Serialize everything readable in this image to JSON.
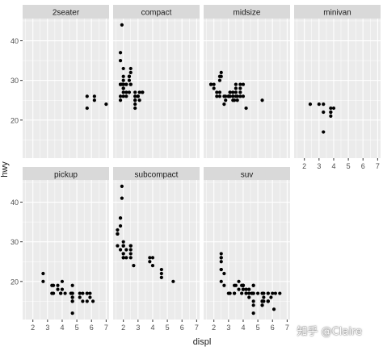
{
  "chart_data": {
    "type": "scatter",
    "xlabel": "displ",
    "ylabel": "hwy",
    "xlim": [
      1.3,
      7.2
    ],
    "ylim": [
      10.4,
      45.6
    ],
    "x_ticks": [
      2,
      3,
      4,
      5,
      6,
      7
    ],
    "y_ticks": [
      20,
      30,
      40
    ],
    "grid": true,
    "panel_background": "#ebebeb",
    "strip_background": "#d9d9d9",
    "point_color": "#000000",
    "facets": [
      {
        "name": "2seater",
        "points": [
          [
            5.7,
            26
          ],
          [
            5.7,
            23
          ],
          [
            6.2,
            26
          ],
          [
            6.2,
            25
          ],
          [
            7.0,
            24
          ]
        ]
      },
      {
        "name": "compact",
        "points": [
          [
            1.8,
            29
          ],
          [
            1.8,
            29
          ],
          [
            2.0,
            31
          ],
          [
            2.0,
            30
          ],
          [
            2.8,
            26
          ],
          [
            2.8,
            26
          ],
          [
            3.1,
            27
          ],
          [
            1.8,
            26
          ],
          [
            1.8,
            25
          ],
          [
            2.0,
            28
          ],
          [
            2.0,
            27
          ],
          [
            2.8,
            25
          ],
          [
            2.8,
            25
          ],
          [
            3.1,
            25
          ],
          [
            2.2,
            27
          ],
          [
            2.2,
            29
          ],
          [
            2.4,
            31
          ],
          [
            2.4,
            31
          ],
          [
            3.0,
            26
          ],
          [
            3.0,
            26
          ],
          [
            3.3,
            27
          ],
          [
            1.8,
            35
          ],
          [
            1.8,
            37
          ],
          [
            2.0,
            33
          ],
          [
            1.9,
            44
          ],
          [
            2.0,
            29
          ],
          [
            2.0,
            26
          ],
          [
            2.5,
            29
          ],
          [
            2.5,
            29
          ],
          [
            2.8,
            23
          ],
          [
            2.8,
            24
          ],
          [
            1.8,
            29
          ],
          [
            2.0,
            28
          ],
          [
            2.0,
            29
          ],
          [
            1.9,
            29
          ],
          [
            2.4,
            27
          ],
          [
            2.4,
            30
          ],
          [
            2.5,
            33
          ],
          [
            2.5,
            32
          ],
          [
            2.8,
            27
          ],
          [
            3.0,
            26
          ],
          [
            2.2,
            26
          ],
          [
            2.2,
            29
          ],
          [
            2.4,
            31
          ],
          [
            3.3,
            27
          ],
          [
            3.3,
            27
          ],
          [
            2.0,
            28
          ]
        ]
      },
      {
        "name": "midsize",
        "points": [
          [
            2.4,
            27
          ],
          [
            2.4,
            30
          ],
          [
            3.1,
            26
          ],
          [
            3.5,
            29
          ],
          [
            3.6,
            26
          ],
          [
            2.4,
            31
          ],
          [
            3.0,
            26
          ],
          [
            3.3,
            26
          ],
          [
            3.3,
            26
          ],
          [
            3.8,
            28
          ],
          [
            3.8,
            26
          ],
          [
            3.8,
            29
          ],
          [
            4.0,
            29
          ],
          [
            3.1,
            27
          ],
          [
            3.5,
            28
          ],
          [
            3.6,
            25
          ],
          [
            1.8,
            29
          ],
          [
            1.8,
            29
          ],
          [
            2.0,
            29
          ],
          [
            2.0,
            28
          ],
          [
            2.8,
            25
          ],
          [
            2.8,
            26
          ],
          [
            3.1,
            27
          ],
          [
            4.2,
            23
          ],
          [
            5.3,
            25
          ],
          [
            2.5,
            32
          ],
          [
            2.5,
            31
          ],
          [
            3.5,
            26
          ],
          [
            3.5,
            27
          ],
          [
            3.0,
            26
          ],
          [
            2.2,
            26
          ],
          [
            2.2,
            27
          ],
          [
            2.4,
            26
          ],
          [
            3.0,
            26
          ],
          [
            3.3,
            25
          ],
          [
            3.3,
            27
          ],
          [
            3.8,
            27
          ],
          [
            2.7,
            24
          ],
          [
            2.7,
            26
          ],
          [
            3.4,
            25
          ],
          [
            4.0,
            26
          ]
        ]
      },
      {
        "name": "minivan",
        "points": [
          [
            2.4,
            24
          ],
          [
            3.0,
            24
          ],
          [
            3.3,
            22
          ],
          [
            3.3,
            17
          ],
          [
            3.8,
            22
          ],
          [
            3.8,
            21
          ],
          [
            3.8,
            23
          ],
          [
            4.0,
            23
          ],
          [
            3.3,
            24
          ],
          [
            3.8,
            22
          ]
        ]
      },
      {
        "name": "pickup",
        "points": [
          [
            2.7,
            20
          ],
          [
            2.7,
            22
          ],
          [
            3.4,
            19
          ],
          [
            3.4,
            17
          ],
          [
            4.0,
            18
          ],
          [
            4.7,
            17
          ],
          [
            4.7,
            19
          ],
          [
            4.7,
            12
          ],
          [
            5.2,
            17
          ],
          [
            5.7,
            17
          ],
          [
            5.9,
            17
          ],
          [
            4.7,
            16
          ],
          [
            4.7,
            16
          ],
          [
            4.7,
            17
          ],
          [
            5.7,
            15
          ],
          [
            6.1,
            15
          ],
          [
            4.0,
            20
          ],
          [
            4.2,
            17
          ],
          [
            4.6,
            17
          ],
          [
            4.6,
            17
          ],
          [
            5.4,
            17
          ],
          [
            5.4,
            15
          ],
          [
            3.7,
            19
          ],
          [
            3.7,
            18
          ],
          [
            3.9,
            17
          ],
          [
            3.9,
            17
          ],
          [
            4.7,
            15
          ],
          [
            4.7,
            15
          ],
          [
            5.2,
            16
          ],
          [
            5.7,
            17
          ],
          [
            5.9,
            16
          ],
          [
            3.3,
            17
          ],
          [
            3.3,
            19
          ]
        ]
      },
      {
        "name": "subcompact",
        "points": [
          [
            3.8,
            26
          ],
          [
            3.8,
            25
          ],
          [
            4.0,
            26
          ],
          [
            4.0,
            24
          ],
          [
            4.6,
            21
          ],
          [
            4.6,
            22
          ],
          [
            4.6,
            23
          ],
          [
            5.4,
            20
          ],
          [
            1.6,
            33
          ],
          [
            1.6,
            32
          ],
          [
            1.6,
            32
          ],
          [
            1.6,
            29
          ],
          [
            1.6,
            32
          ],
          [
            1.8,
            34
          ],
          [
            1.8,
            36
          ],
          [
            1.8,
            36
          ],
          [
            2.0,
            29
          ],
          [
            2.0,
            26
          ],
          [
            2.0,
            27
          ],
          [
            2.0,
            30
          ],
          [
            2.7,
            24
          ],
          [
            1.9,
            44
          ],
          [
            1.9,
            41
          ],
          [
            2.0,
            29
          ],
          [
            2.0,
            26
          ],
          [
            2.5,
            28
          ],
          [
            2.5,
            29
          ],
          [
            2.5,
            27
          ],
          [
            2.5,
            26
          ],
          [
            2.2,
            26
          ],
          [
            2.2,
            28
          ],
          [
            2.5,
            29
          ],
          [
            2.0,
            27
          ],
          [
            2.0,
            29
          ],
          [
            1.8,
            28
          ]
        ]
      },
      {
        "name": "suv",
        "points": [
          [
            5.3,
            15
          ],
          [
            5.3,
            14
          ],
          [
            5.7,
            15
          ],
          [
            6.5,
            17
          ],
          [
            5.3,
            17
          ],
          [
            5.3,
            15
          ],
          [
            5.3,
            14
          ],
          [
            5.3,
            15
          ],
          [
            5.7,
            15
          ],
          [
            5.7,
            17
          ],
          [
            6.0,
            17
          ],
          [
            5.7,
            15
          ],
          [
            6.2,
            17
          ],
          [
            4.0,
            19
          ],
          [
            4.0,
            19
          ],
          [
            4.6,
            17
          ],
          [
            5.0,
            17
          ],
          [
            4.2,
            17
          ],
          [
            4.2,
            17
          ],
          [
            4.6,
            17
          ],
          [
            5.4,
            15
          ],
          [
            5.4,
            16
          ],
          [
            5.4,
            17
          ],
          [
            2.5,
            20
          ],
          [
            2.5,
            25
          ],
          [
            2.5,
            23
          ],
          [
            2.5,
            26
          ],
          [
            2.5,
            27
          ],
          [
            3.0,
            17
          ],
          [
            3.5,
            19
          ],
          [
            4.6,
            17
          ],
          [
            5.9,
            16
          ],
          [
            4.7,
            15
          ],
          [
            4.7,
            14
          ],
          [
            4.2,
            18
          ],
          [
            4.4,
            17
          ],
          [
            4.4,
            18
          ],
          [
            4.4,
            16
          ],
          [
            5.7,
            15
          ],
          [
            6.1,
            13
          ],
          [
            4.7,
            12
          ],
          [
            4.7,
            19
          ],
          [
            4.7,
            17
          ],
          [
            3.7,
            20
          ],
          [
            3.7,
            18
          ],
          [
            3.9,
            17
          ],
          [
            3.9,
            19
          ],
          [
            4.7,
            19
          ],
          [
            4.0,
            18
          ],
          [
            4.0,
            18
          ],
          [
            4.0,
            19
          ],
          [
            3.1,
            17
          ],
          [
            3.4,
            17
          ],
          [
            2.7,
            19
          ],
          [
            2.7,
            22
          ],
          [
            3.4,
            19
          ],
          [
            3.4,
            17
          ],
          [
            4.0,
            19
          ],
          [
            4.7,
            17
          ],
          [
            5.7,
            17
          ],
          [
            2.5,
            23
          ],
          [
            2.5,
            26
          ]
        ]
      }
    ]
  },
  "watermark": "知乎 @Claire"
}
